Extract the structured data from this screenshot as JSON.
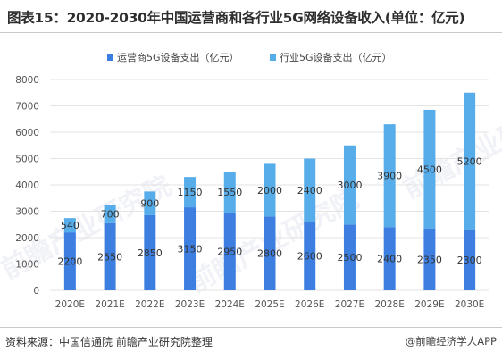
{
  "title": "图表15：2020-2030年中国运营商和各行业5G网络设备收入(单位：亿元)",
  "source": "资料来源：中国信通院 前瞻产业研究院整理",
  "brand": "@前瞻经济学人APP",
  "watermark": "前瞻产业研究院",
  "colors": {
    "operator": "#3d7fe0",
    "industry": "#56ade9",
    "axis_text": "#555555",
    "grid": "#e3e3e3"
  },
  "chart_data": {
    "type": "bar",
    "stacked": true,
    "categories": [
      "2020E",
      "2021E",
      "2022E",
      "2023E",
      "2024E",
      "2025E",
      "2026E",
      "2027E",
      "2028E",
      "2029E",
      "2030E"
    ],
    "series": [
      {
        "name": "运营商5G设备支出（亿元）",
        "values": [
          2200,
          2550,
          2850,
          3150,
          2950,
          2800,
          2600,
          2500,
          2400,
          2350,
          2300
        ]
      },
      {
        "name": "行业5G设备支出（亿元）",
        "values": [
          540,
          700,
          900,
          1150,
          1550,
          2000,
          2400,
          3000,
          3900,
          4500,
          5200
        ]
      }
    ],
    "yticks": [
      0,
      1000,
      2000,
      3000,
      4000,
      5000,
      6000,
      7000,
      8000
    ],
    "ylim": [
      0,
      8000
    ],
    "legend": "top-center",
    "grid": true
  }
}
